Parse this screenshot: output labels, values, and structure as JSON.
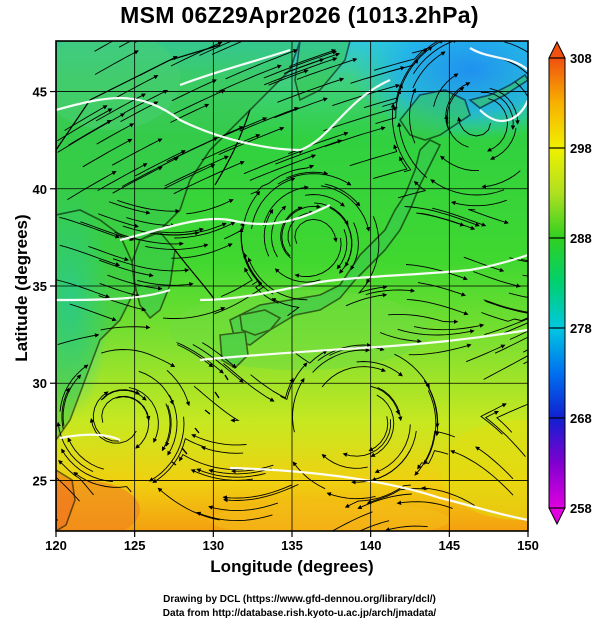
{
  "title": "MSM 06Z29Apr2026 (1013.2hPa)",
  "chart_data": {
    "type": "heatmap",
    "title": "MSM 06Z29Apr2026 (1013.2hPa)",
    "xlabel": "Longitude (degrees)",
    "ylabel": "Latitude  (degrees)",
    "xlim": [
      120,
      150
    ],
    "ylim": [
      22.4,
      47.6
    ],
    "x_ticks": [
      120,
      125,
      130,
      135,
      140,
      145,
      150
    ],
    "y_ticks": [
      25,
      30,
      35,
      40,
      45
    ],
    "grid": true,
    "colorbar": {
      "min": 258,
      "max": 308,
      "ticks": [
        258,
        268,
        278,
        288,
        298,
        308
      ],
      "colors": [
        "#e000e0",
        "#8000d0",
        "#1020d0",
        "#0070f0",
        "#00c8e0",
        "#00d070",
        "#30d020",
        "#b0e020",
        "#f0f000",
        "#f8b000",
        "#f05010"
      ]
    },
    "field_description": "temperature shading with wind streamlines"
  },
  "credits": {
    "line1": "Drawing by DCL (https://www.gfd-dennou.org/library/dcl/)",
    "line2": "Data from http://database.rish.kyoto-u.ac.jp/arch/jmadata/"
  }
}
